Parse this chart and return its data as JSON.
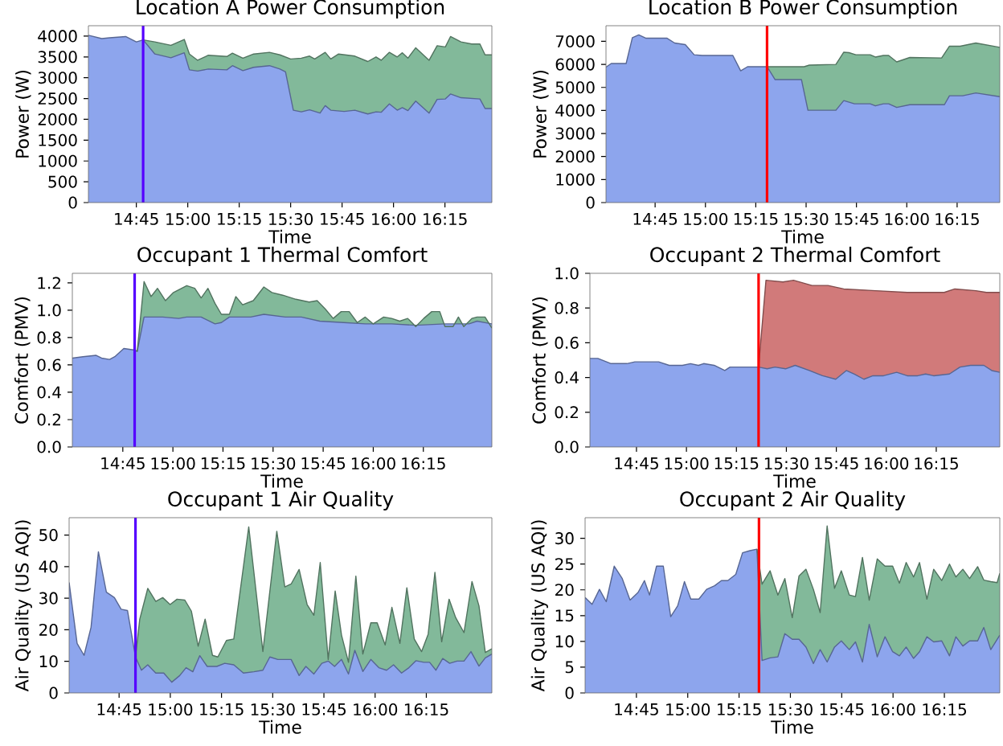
{
  "chart_data": [
    {
      "type": "area",
      "title": "Location A Power Consumption",
      "xlabel": "Time",
      "ylabel": "Power (W)",
      "xlim": [
        14.517,
        16.478
      ],
      "xticks": [
        {
          "value": 14.75,
          "label": "14:45"
        },
        {
          "value": 15.0,
          "label": "15:00"
        },
        {
          "value": 15.25,
          "label": "15:15"
        },
        {
          "value": 15.5,
          "label": "15:30"
        },
        {
          "value": 15.75,
          "label": "15:45"
        },
        {
          "value": 16.0,
          "label": "16:00"
        },
        {
          "value": 16.25,
          "label": "16:15"
        }
      ],
      "ylim": [
        0,
        4250
      ],
      "yticks": [
        0,
        500,
        1000,
        1500,
        2000,
        2500,
        3000,
        3500,
        4000
      ],
      "series": [
        {
          "color": "#82b99a",
          "x": [
            14.783,
            14.84,
            14.918,
            14.983,
            15.008,
            15.048,
            15.1,
            15.19,
            15.217,
            15.268,
            15.32,
            15.397,
            15.448,
            15.5,
            15.552,
            15.592,
            15.617,
            15.668,
            15.695,
            15.733,
            15.812,
            15.875,
            15.915,
            15.94,
            15.98,
            16.018,
            16.043,
            16.07,
            16.108,
            16.173,
            16.212,
            16.252,
            16.277,
            16.328,
            16.38,
            16.42,
            16.445,
            16.478
          ],
          "values": [
            3910,
            3860,
            3780,
            3920,
            3570,
            3420,
            3540,
            3510,
            3590,
            3470,
            3570,
            3610,
            3550,
            3450,
            3470,
            3520,
            3450,
            3610,
            3450,
            3570,
            3520,
            3390,
            3500,
            3420,
            3610,
            3500,
            3600,
            3470,
            3720,
            3420,
            3770,
            3740,
            3990,
            3860,
            3810,
            3810,
            3550,
            3550
          ]
        },
        {
          "color": "#8da5ed",
          "x": [
            14.517,
            14.582,
            14.62,
            14.698,
            14.75,
            14.783,
            14.84,
            14.918,
            14.983,
            15.008,
            15.048,
            15.1,
            15.19,
            15.217,
            15.268,
            15.32,
            15.397,
            15.448,
            15.475,
            15.513,
            15.552,
            15.592,
            15.643,
            15.668,
            15.695,
            15.76,
            15.812,
            15.875,
            15.915,
            15.94,
            15.98,
            16.018,
            16.043,
            16.07,
            16.108,
            16.173,
            16.212,
            16.252,
            16.277,
            16.328,
            16.42,
            16.445,
            16.478
          ],
          "values": [
            4020,
            3940,
            3960,
            3990,
            3860,
            3910,
            3570,
            3480,
            3600,
            3190,
            3160,
            3210,
            3190,
            3290,
            3170,
            3250,
            3290,
            3210,
            3140,
            2220,
            2180,
            2230,
            2150,
            2330,
            2220,
            2190,
            2220,
            2130,
            2180,
            2170,
            2370,
            2220,
            2280,
            2210,
            2440,
            2150,
            2480,
            2490,
            2610,
            2520,
            2490,
            2260,
            2260
          ]
        }
      ],
      "ref_lines": [
        {
          "axis": "x",
          "value": 14.783,
          "color": "#5500ff"
        }
      ]
    },
    {
      "type": "area",
      "title": "Location B Power Consumption",
      "xlabel": "Time",
      "ylabel": "Power (W)",
      "xlim": [
        14.506,
        16.462
      ],
      "xticks": [
        {
          "value": 14.75,
          "label": "14:45"
        },
        {
          "value": 15.0,
          "label": "15:00"
        },
        {
          "value": 15.25,
          "label": "15:15"
        },
        {
          "value": 15.5,
          "label": "15:30"
        },
        {
          "value": 15.75,
          "label": "15:45"
        },
        {
          "value": 16.0,
          "label": "16:00"
        },
        {
          "value": 16.25,
          "label": "16:15"
        }
      ],
      "ylim": [
        0,
        7680
      ],
      "yticks": [
        0,
        1000,
        2000,
        3000,
        4000,
        5000,
        6000,
        7000
      ],
      "series": [
        {
          "color": "#82b99a",
          "x": [
            15.301,
            15.346,
            15.49,
            15.516,
            15.648,
            15.687,
            15.713,
            15.747,
            15.818,
            15.844,
            15.884,
            15.91,
            15.95,
            16.015,
            16.173,
            16.212,
            16.265,
            16.343,
            16.462
          ],
          "values": [
            5900,
            5900,
            5900,
            5970,
            6000,
            6530,
            6510,
            6420,
            6420,
            6320,
            6390,
            6390,
            6110,
            6300,
            6280,
            6790,
            6790,
            6930,
            6740
          ]
        },
        {
          "color": "#8da5ed",
          "x": [
            14.506,
            14.532,
            14.606,
            14.637,
            14.669,
            14.703,
            14.808,
            14.847,
            14.9,
            14.944,
            14.984,
            15.136,
            15.175,
            15.209,
            15.306,
            15.346,
            15.477,
            15.509,
            15.648,
            15.687,
            15.74,
            15.818,
            15.844,
            15.884,
            15.91,
            15.95,
            16.015,
            16.187,
            16.212,
            16.278,
            16.343,
            16.462
          ],
          "values": [
            5880,
            6040,
            6040,
            7160,
            7280,
            7140,
            7140,
            6930,
            6860,
            6420,
            6390,
            6390,
            5720,
            5900,
            5900,
            5340,
            5340,
            4010,
            4010,
            4430,
            4290,
            4290,
            4200,
            4290,
            4290,
            4130,
            4250,
            4250,
            4640,
            4640,
            4760,
            4600
          ]
        }
      ],
      "ref_lines": [
        {
          "axis": "x",
          "value": 15.306,
          "color": "#ff0000"
        }
      ]
    },
    {
      "type": "area",
      "title": "Occupant 1 Thermal Comfort",
      "xlabel": "Time",
      "ylabel": "Comfort (PMV)",
      "xlim": [
        14.498,
        16.592
      ],
      "xticks": [
        {
          "value": 14.75,
          "label": "14:45"
        },
        {
          "value": 15.0,
          "label": "15:00"
        },
        {
          "value": 15.25,
          "label": "15:15"
        },
        {
          "value": 15.5,
          "label": "15:30"
        },
        {
          "value": 15.75,
          "label": "15:45"
        },
        {
          "value": 16.0,
          "label": "16:00"
        },
        {
          "value": 16.25,
          "label": "16:15"
        }
      ],
      "ylim": [
        0,
        1.27
      ],
      "yticks": [
        {
          "value": 0,
          "label": "0.0"
        },
        {
          "value": 0.2,
          "label": "0.2"
        },
        {
          "value": 0.4,
          "label": "0.4"
        },
        {
          "value": 0.6,
          "label": "0.6"
        },
        {
          "value": 0.8,
          "label": "0.8"
        },
        {
          "value": 1.0,
          "label": "1.0"
        },
        {
          "value": 1.2,
          "label": "1.2"
        }
      ],
      "series": [
        {
          "color": "#82b99a",
          "x": [
            14.803,
            14.822,
            14.856,
            14.891,
            14.923,
            14.963,
            15.003,
            15.069,
            15.109,
            15.141,
            15.175,
            15.21,
            15.242,
            15.282,
            15.314,
            15.348,
            15.401,
            15.454,
            15.494,
            15.548,
            15.614,
            15.68,
            15.72,
            15.76,
            15.8,
            15.84,
            15.88,
            15.92,
            15.96,
            16.0,
            16.052,
            16.092,
            16.132,
            16.172,
            16.212,
            16.252,
            16.292,
            16.332,
            16.358,
            16.398,
            16.425,
            16.452,
            16.492,
            16.518,
            16.558,
            16.592
          ],
          "values": [
            0.71,
            0.7,
            1.21,
            1.1,
            1.16,
            1.07,
            1.13,
            1.18,
            1.16,
            1.09,
            1.16,
            1.05,
            0.97,
            0.97,
            1.1,
            1.04,
            1.07,
            1.17,
            1.13,
            1.11,
            1.08,
            1.06,
            1.07,
            1.01,
            0.94,
            0.99,
            0.99,
            0.91,
            0.95,
            0.9,
            0.95,
            0.94,
            0.92,
            0.94,
            0.88,
            0.94,
            0.99,
            0.99,
            0.88,
            0.88,
            0.95,
            0.88,
            0.94,
            0.95,
            0.95,
            0.87
          ]
        },
        {
          "color": "#8da5ed",
          "x": [
            14.498,
            14.551,
            14.617,
            14.644,
            14.684,
            14.71,
            14.755,
            14.803,
            14.822,
            14.856,
            14.949,
            15.029,
            15.069,
            15.141,
            15.21,
            15.242,
            15.282,
            15.388,
            15.454,
            15.561,
            15.641,
            15.733,
            15.853,
            15.96,
            16.092,
            16.212,
            16.358,
            16.478,
            16.518,
            16.592
          ],
          "values": [
            0.65,
            0.66,
            0.67,
            0.65,
            0.64,
            0.66,
            0.72,
            0.71,
            0.7,
            0.95,
            0.95,
            0.94,
            0.95,
            0.95,
            0.9,
            0.91,
            0.95,
            0.95,
            0.97,
            0.95,
            0.95,
            0.92,
            0.91,
            0.9,
            0.9,
            0.89,
            0.9,
            0.9,
            0.92,
            0.9
          ]
        }
      ],
      "ref_lines": [
        {
          "axis": "x",
          "value": 14.809,
          "color": "#5500ff"
        }
      ]
    },
    {
      "type": "area",
      "title": "Occupant 2 Thermal Comfort",
      "xlabel": "Time",
      "ylabel": "Comfort (PMV)",
      "xlim": [
        14.517,
        16.568
      ],
      "xticks": [
        {
          "value": 14.75,
          "label": "14:45"
        },
        {
          "value": 15.0,
          "label": "15:00"
        },
        {
          "value": 15.25,
          "label": "15:15"
        },
        {
          "value": 15.5,
          "label": "15:30"
        },
        {
          "value": 15.75,
          "label": "15:45"
        },
        {
          "value": 16.0,
          "label": "16:00"
        },
        {
          "value": 16.25,
          "label": "16:15"
        }
      ],
      "ylim": [
        0,
        1.0
      ],
      "yticks": [
        {
          "value": 0,
          "label": "0.0"
        },
        {
          "value": 0.2,
          "label": "0.2"
        },
        {
          "value": 0.4,
          "label": "0.4"
        },
        {
          "value": 0.6,
          "label": "0.6"
        },
        {
          "value": 0.8,
          "label": "0.8"
        },
        {
          "value": 1.0,
          "label": "1.0"
        }
      ],
      "series": [
        {
          "color": "#d17a7a",
          "x": [
            15.361,
            15.398,
            15.483,
            15.536,
            15.628,
            15.708,
            15.787,
            15.946,
            16.105,
            16.21,
            16.29,
            16.343,
            16.448,
            16.501,
            16.568
          ],
          "values": [
            0.46,
            0.96,
            0.95,
            0.96,
            0.93,
            0.93,
            0.91,
            0.9,
            0.89,
            0.89,
            0.89,
            0.91,
            0.9,
            0.89,
            0.89
          ]
        },
        {
          "color": "#8da5ed",
          "x": [
            14.517,
            14.557,
            14.623,
            14.702,
            14.742,
            14.808,
            14.861,
            14.914,
            14.98,
            15.02,
            15.06,
            15.086,
            15.139,
            15.192,
            15.218,
            15.298,
            15.351,
            15.361,
            15.404,
            15.443,
            15.496,
            15.544,
            15.615,
            15.681,
            15.747,
            15.8,
            15.84,
            15.888,
            15.933,
            15.986,
            16.052,
            16.105,
            16.157,
            16.197,
            16.237,
            16.316,
            16.369,
            16.422,
            16.488,
            16.528,
            16.568
          ],
          "values": [
            0.51,
            0.51,
            0.48,
            0.48,
            0.49,
            0.49,
            0.49,
            0.47,
            0.47,
            0.48,
            0.47,
            0.48,
            0.47,
            0.44,
            0.46,
            0.46,
            0.46,
            0.46,
            0.45,
            0.46,
            0.45,
            0.47,
            0.44,
            0.41,
            0.39,
            0.44,
            0.42,
            0.39,
            0.41,
            0.41,
            0.43,
            0.41,
            0.41,
            0.42,
            0.41,
            0.42,
            0.46,
            0.47,
            0.47,
            0.44,
            0.43
          ]
        }
      ],
      "ref_lines": [
        {
          "axis": "x",
          "value": 15.361,
          "color": "#ff0000"
        }
      ]
    },
    {
      "type": "area",
      "title": "Occupant 1 Air Quality",
      "xlabel": "Time",
      "ylabel": "Air Quality (US AQI)",
      "xlim": [
        14.506,
        16.57
      ],
      "xticks": [
        {
          "value": 14.75,
          "label": "14:45"
        },
        {
          "value": 15.0,
          "label": "15:00"
        },
        {
          "value": 15.25,
          "label": "15:15"
        },
        {
          "value": 15.5,
          "label": "15:30"
        },
        {
          "value": 15.75,
          "label": "15:45"
        },
        {
          "value": 16.0,
          "label": "16:00"
        },
        {
          "value": 16.25,
          "label": "16:15"
        }
      ],
      "ylim": [
        0,
        55.5
      ],
      "yticks": [
        0,
        10,
        20,
        30,
        40,
        50
      ],
      "series": [
        {
          "color": "#82b99a",
          "x": [
            14.83,
            14.851,
            14.89,
            14.929,
            14.963,
            14.999,
            15.033,
            15.071,
            15.103,
            15.136,
            15.17,
            15.206,
            15.232,
            15.274,
            15.31,
            15.383,
            15.452,
            15.52,
            15.559,
            15.59,
            15.629,
            15.668,
            15.701,
            15.732,
            15.771,
            15.805,
            15.836,
            15.87,
            15.906,
            15.94,
            15.979,
            16.01,
            16.049,
            16.082,
            16.121,
            16.155,
            16.191,
            16.227,
            16.259,
            16.292,
            16.325,
            16.361,
            16.393,
            16.434,
            16.473,
            16.507,
            16.538,
            16.57
          ],
          "values": [
            11.4,
            23.4,
            33.1,
            29.0,
            30.2,
            28.0,
            29.7,
            29.4,
            25.9,
            14.8,
            23.4,
            11.9,
            11.4,
            16.6,
            17.1,
            52.6,
            13.1,
            51.2,
            33.6,
            34.5,
            39.1,
            28.0,
            24.6,
            41.3,
            10.6,
            32.3,
            18.3,
            9.7,
            37.0,
            12.3,
            22.2,
            22.2,
            15.2,
            27.1,
            15.7,
            33.3,
            17.1,
            13.1,
            18.6,
            38.2,
            16.2,
            29.7,
            23.9,
            19.1,
            35.3,
            27.6,
            12.8,
            14.0
          ]
        },
        {
          "color": "#8da5ed",
          "x": [
            14.506,
            14.545,
            14.579,
            14.613,
            14.649,
            14.688,
            14.727,
            14.76,
            14.791,
            14.83,
            14.859,
            14.89,
            14.929,
            14.968,
            15.007,
            15.046,
            15.077,
            15.11,
            15.144,
            15.18,
            15.227,
            15.266,
            15.31,
            15.357,
            15.408,
            15.452,
            15.486,
            15.525,
            15.59,
            15.629,
            15.662,
            15.701,
            15.74,
            15.771,
            15.802,
            15.836,
            15.87,
            15.901,
            15.94,
            15.979,
            16.018,
            16.056,
            16.09,
            16.129,
            16.165,
            16.199,
            16.238,
            16.266,
            16.297,
            16.33,
            16.364,
            16.4,
            16.434,
            16.468,
            16.507,
            16.538,
            16.57
          ],
          "values": [
            35.0,
            15.7,
            11.9,
            20.8,
            44.7,
            31.9,
            30.2,
            26.5,
            26.1,
            11.4,
            7.2,
            8.9,
            6.3,
            6.3,
            3.4,
            5.5,
            8.0,
            6.7,
            11.8,
            8.4,
            8.4,
            9.4,
            8.9,
            6.3,
            6.7,
            7.2,
            11.4,
            10.6,
            10.6,
            5.5,
            8.4,
            6.0,
            9.4,
            10.1,
            8.4,
            10.6,
            6.0,
            13.5,
            6.8,
            10.6,
            8.0,
            7.2,
            8.9,
            6.3,
            8.0,
            10.2,
            9.7,
            9.7,
            7.2,
            10.9,
            9.4,
            10.1,
            10.1,
            13.1,
            8.5,
            11.1,
            12.3
          ]
        }
      ],
      "ref_lines": [
        {
          "axis": "x",
          "value": 14.83,
          "color": "#5500ff"
        }
      ]
    },
    {
      "type": "area",
      "title": "Occupant 2 Air Quality",
      "xlabel": "Time",
      "ylabel": "Air Quality (US AQI)",
      "xlim": [
        14.5,
        16.52
      ],
      "xticks": [
        {
          "value": 14.75,
          "label": "14:45"
        },
        {
          "value": 15.0,
          "label": "15:00"
        },
        {
          "value": 15.25,
          "label": "15:15"
        },
        {
          "value": 15.5,
          "label": "15:30"
        },
        {
          "value": 15.75,
          "label": "15:45"
        },
        {
          "value": 16.0,
          "label": "16:00"
        },
        {
          "value": 16.25,
          "label": "16:15"
        }
      ],
      "ylim": [
        0,
        34
      ],
      "yticks": [
        0,
        5,
        10,
        15,
        20,
        25,
        30
      ],
      "series": [
        {
          "color": "#82b99a",
          "x": [
            15.337,
            15.362,
            15.401,
            15.439,
            15.473,
            15.509,
            15.542,
            15.576,
            15.612,
            15.645,
            15.679,
            15.715,
            15.748,
            15.787,
            15.817,
            15.851,
            15.884,
            15.923,
            15.961,
            15.998,
            16.031,
            16.064,
            16.1,
            16.129,
            16.165,
            16.198,
            16.237,
            16.275,
            16.306,
            16.34,
            16.373,
            16.412,
            16.442,
            16.476,
            16.507,
            16.52
          ],
          "values": [
            27.9,
            21.1,
            23.7,
            19.0,
            22.2,
            14.6,
            22.7,
            24.0,
            20.1,
            15.6,
            32.4,
            20.3,
            23.7,
            19.0,
            18.7,
            26.3,
            18.0,
            26.0,
            24.6,
            24.6,
            21.3,
            25.3,
            22.5,
            25.3,
            18.2,
            24.0,
            21.8,
            25.0,
            22.5,
            24.0,
            22.2,
            24.5,
            21.9,
            21.6,
            21.4,
            23.2
          ]
        },
        {
          "color": "#8da5ed",
          "x": [
            14.5,
            14.534,
            14.57,
            14.603,
            14.642,
            14.681,
            14.719,
            14.758,
            14.789,
            14.814,
            14.848,
            14.881,
            14.917,
            14.951,
            14.984,
            15.015,
            15.054,
            15.092,
            15.131,
            15.164,
            15.195,
            15.234,
            15.267,
            15.303,
            15.337,
            15.362,
            15.401,
            15.439,
            15.473,
            15.509,
            15.542,
            15.576,
            15.612,
            15.645,
            15.679,
            15.715,
            15.748,
            15.787,
            15.817,
            15.851,
            15.884,
            15.923,
            15.961,
            15.998,
            16.031,
            16.064,
            16.1,
            16.129,
            16.165,
            16.198,
            16.237,
            16.275,
            16.306,
            16.34,
            16.373,
            16.412,
            16.442,
            16.476,
            16.52
          ],
          "values": [
            18.5,
            17.2,
            20.1,
            17.7,
            24.6,
            22.2,
            18.0,
            19.5,
            21.8,
            19.0,
            24.6,
            24.6,
            14.8,
            16.9,
            21.6,
            18.2,
            18.2,
            20.1,
            20.8,
            21.8,
            21.8,
            23.0,
            27.2,
            27.6,
            27.9,
            6.3,
            6.8,
            7.0,
            11.5,
            10.4,
            10.4,
            8.9,
            5.7,
            8.4,
            6.0,
            8.9,
            10.1,
            8.4,
            9.9,
            6.0,
            13.3,
            7.0,
            10.9,
            8.0,
            7.2,
            8.9,
            6.7,
            8.0,
            10.9,
            9.9,
            10.1,
            7.2,
            10.9,
            9.1,
            10.1,
            10.1,
            12.7,
            8.4,
            11.2
          ]
        }
      ],
      "ref_lines": [
        {
          "axis": "x",
          "value": 15.347,
          "color": "#ff0000"
        }
      ]
    }
  ]
}
